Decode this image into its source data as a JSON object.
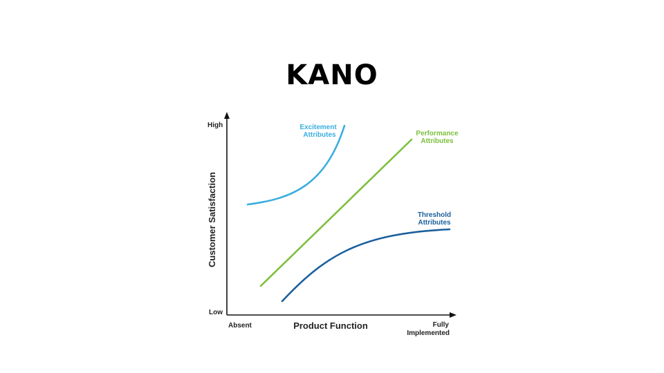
{
  "title": "KANO",
  "diagram": {
    "y_axis": {
      "label": "Customer Satisfaction",
      "high": "High",
      "low": "Low"
    },
    "x_axis": {
      "label": "Product Function",
      "start": "Absent",
      "end_line1": "Fully",
      "end_line2": "Implemented"
    },
    "curves": {
      "excitement": {
        "line1": "Excitement",
        "line2": "Attributes",
        "color": "#3aaedf"
      },
      "performance": {
        "line1": "Performance",
        "line2": "Attributes",
        "color": "#7cbf3c"
      },
      "threshold": {
        "line1": "Threshold",
        "line2": "Attributes",
        "color": "#1a5f9c"
      }
    }
  }
}
